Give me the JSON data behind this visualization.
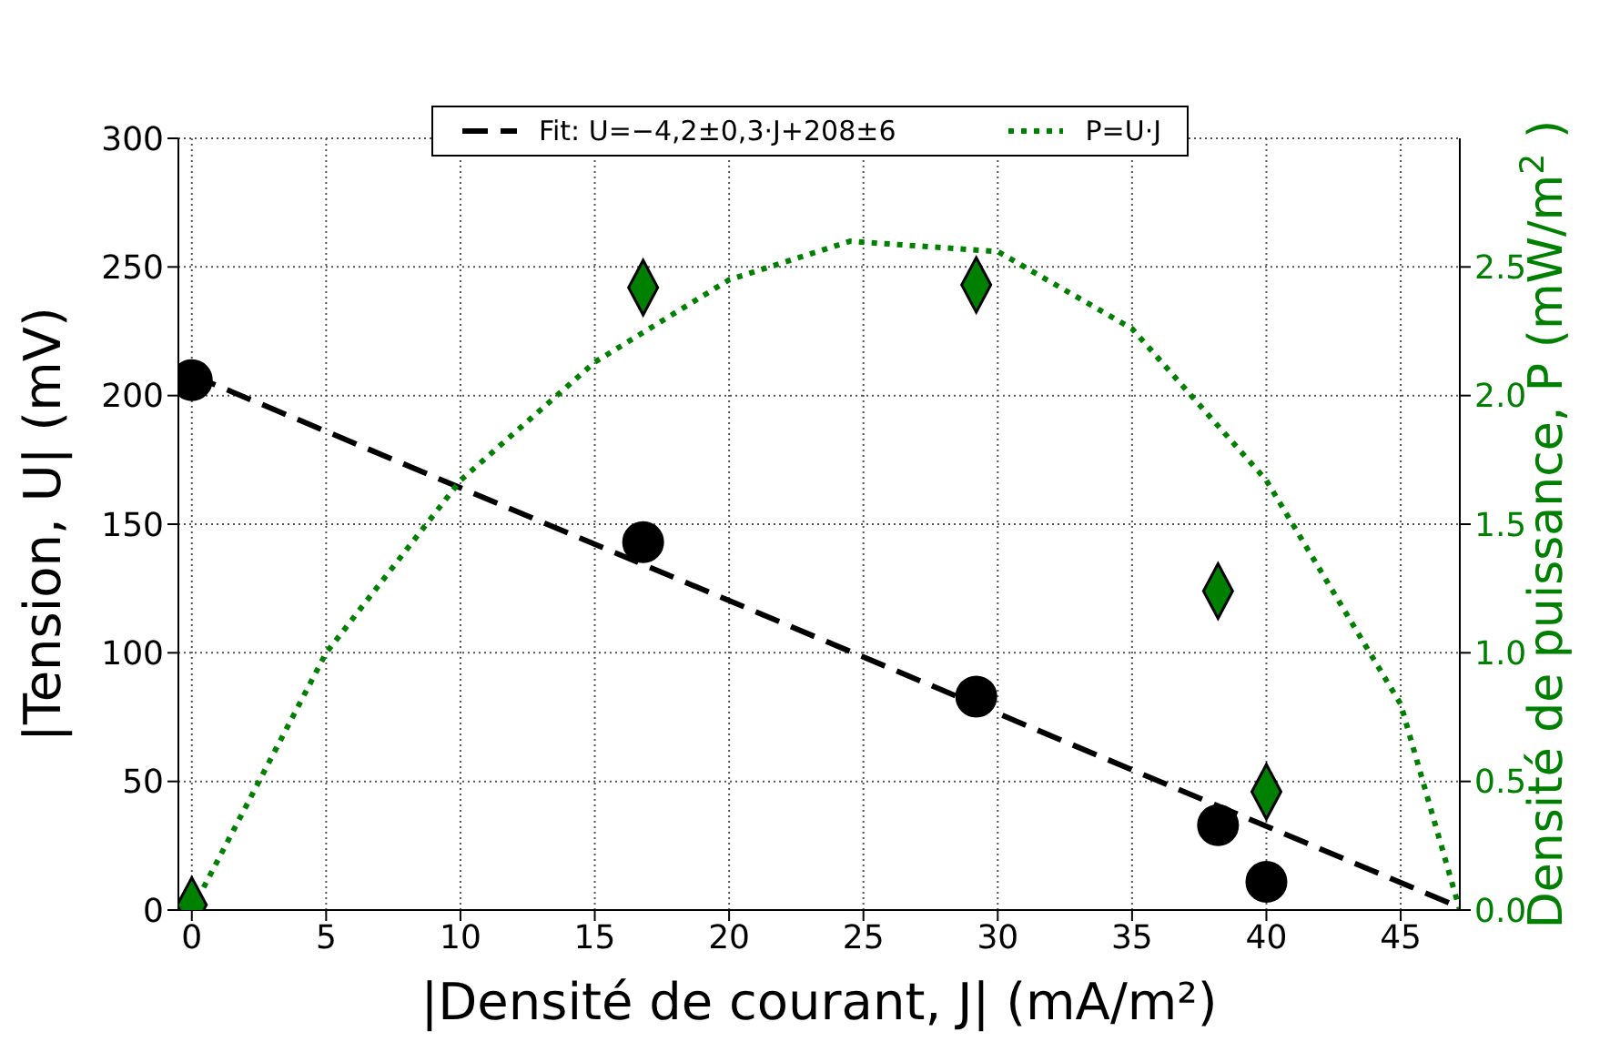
{
  "chart_data": {
    "type": "scatter",
    "xlabel": "|Densité de courant, J| (mA/m²)",
    "ylabel": "|Tension, U| (mV)",
    "y2label": "Densité de puissance, P (mW/m$^{2}$ )",
    "xlim": [
      -0.5,
      47.2
    ],
    "xticks": [
      0,
      5,
      10,
      15,
      20,
      25,
      30,
      35,
      40,
      45
    ],
    "ylim": [
      0,
      300
    ],
    "yticks": [
      0,
      50,
      100,
      150,
      200,
      250,
      300
    ],
    "y2lim": [
      0,
      3
    ],
    "y2ticks": [
      {
        "value": 0,
        "label": "0.0"
      },
      {
        "value": 0.5,
        "label": "0.5"
      },
      {
        "value": 1,
        "label": "1.0"
      },
      {
        "value": 1.5,
        "label": "1.5"
      },
      {
        "value": 2,
        "label": "2.0"
      },
      {
        "value": 2.5,
        "label": "2.5"
      }
    ],
    "grid": true,
    "legend": "top",
    "series": [
      {
        "type": "line",
        "name": "Fit: U=−4,2±0,3·J+208±6",
        "color": "#000000",
        "x": [
          0,
          47.2
        ],
        "values": [
          208,
          1
        ],
        "marker": "none",
        "line_style": "dashed"
      },
      {
        "type": "line",
        "name": "P=U·J",
        "color": "#008000",
        "axis": "y2",
        "x": [
          0,
          5,
          10,
          15,
          20,
          24.5,
          30,
          35,
          40,
          45,
          47.2
        ],
        "values": [
          0,
          1.0,
          1.67,
          2.13,
          2.45,
          2.6,
          2.56,
          2.26,
          1.67,
          0.8,
          0
        ],
        "marker": "none",
        "line_style": "dotted"
      },
      {
        "color": "#000000",
        "x": [
          0,
          16.8,
          29.2,
          38.2,
          40
        ],
        "values": [
          206,
          143,
          83,
          33,
          11
        ],
        "marker": "circle"
      },
      {
        "color": "#008000",
        "axis": "y2",
        "x": [
          0,
          16.8,
          29.2,
          38.2,
          40
        ],
        "values": [
          0.02,
          2.42,
          2.43,
          1.24,
          0.46
        ],
        "marker": "diamond"
      }
    ]
  }
}
